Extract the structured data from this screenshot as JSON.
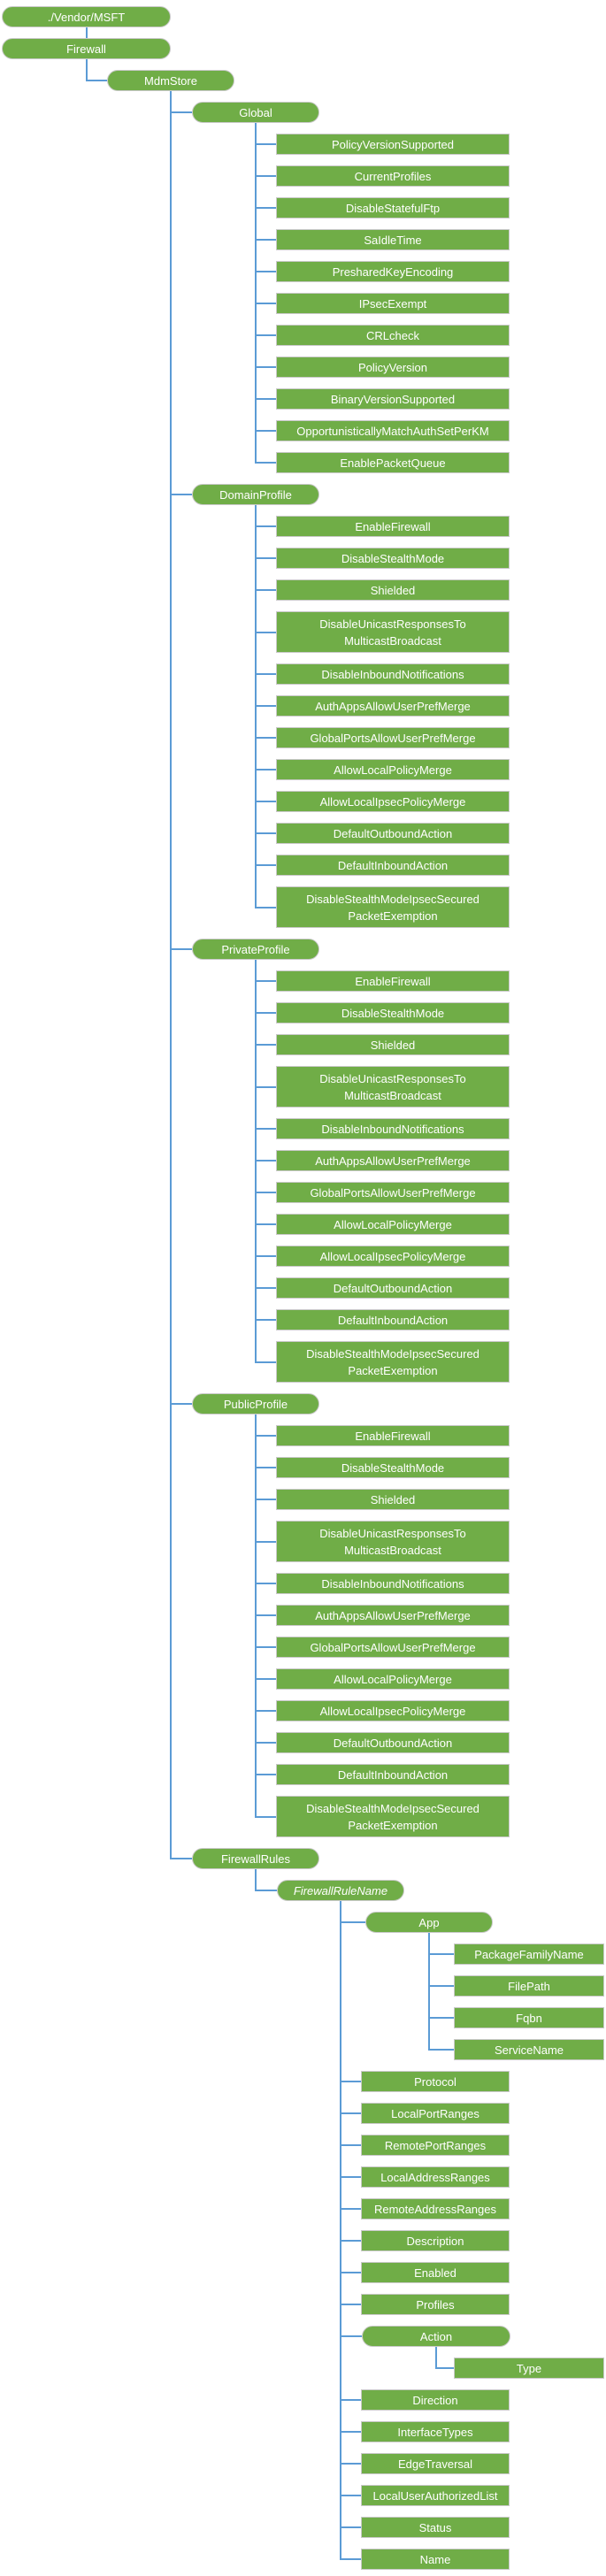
{
  "colors": {
    "node_fill": "#70AD47",
    "node_border": "#c9c9c9",
    "connector": "#5B9BD5",
    "text": "#ffffff"
  },
  "tree": {
    "label": "./Vendor/MSFT",
    "kind": "pill",
    "children": [
      {
        "label": "Firewall",
        "kind": "pill",
        "children": [
          {
            "label": "MdmStore",
            "kind": "pill",
            "children": [
              {
                "label": "Global",
                "kind": "pill",
                "children": [
                  {
                    "label": "PolicyVersionSupported",
                    "kind": "leaf"
                  },
                  {
                    "label": "CurrentProfiles",
                    "kind": "leaf"
                  },
                  {
                    "label": "DisableStatefulFtp",
                    "kind": "leaf"
                  },
                  {
                    "label": "SaIdleTime",
                    "kind": "leaf"
                  },
                  {
                    "label": "PresharedKeyEncoding",
                    "kind": "leaf"
                  },
                  {
                    "label": "IPsecExempt",
                    "kind": "leaf"
                  },
                  {
                    "label": "CRLcheck",
                    "kind": "leaf"
                  },
                  {
                    "label": "PolicyVersion",
                    "kind": "leaf"
                  },
                  {
                    "label": "BinaryVersionSupported",
                    "kind": "leaf"
                  },
                  {
                    "label": "OpportunisticallyMatchAuthSetPerKM",
                    "kind": "leaf"
                  },
                  {
                    "label": "EnablePacketQueue",
                    "kind": "leaf"
                  }
                ]
              },
              {
                "label": "DomainProfile",
                "kind": "pill",
                "children": [
                  {
                    "label": "EnableFirewall",
                    "kind": "leaf"
                  },
                  {
                    "label": "DisableStealthMode",
                    "kind": "leaf"
                  },
                  {
                    "label": "Shielded",
                    "kind": "leaf"
                  },
                  {
                    "label": "DisableUnicastResponsesTo\nMulticastBroadcast",
                    "kind": "leaf"
                  },
                  {
                    "label": "DisableInboundNotifications",
                    "kind": "leaf"
                  },
                  {
                    "label": "AuthAppsAllowUserPrefMerge",
                    "kind": "leaf"
                  },
                  {
                    "label": "GlobalPortsAllowUserPrefMerge",
                    "kind": "leaf"
                  },
                  {
                    "label": "AllowLocalPolicyMerge",
                    "kind": "leaf"
                  },
                  {
                    "label": "AllowLocalIpsecPolicyMerge",
                    "kind": "leaf"
                  },
                  {
                    "label": "DefaultOutboundAction",
                    "kind": "leaf"
                  },
                  {
                    "label": "DefaultInboundAction",
                    "kind": "leaf"
                  },
                  {
                    "label": "DisableStealthModeIpsecSecured\nPacketExemption",
                    "kind": "leaf"
                  }
                ]
              },
              {
                "label": "PrivateProfile",
                "kind": "pill",
                "children": [
                  {
                    "label": "EnableFirewall",
                    "kind": "leaf"
                  },
                  {
                    "label": "DisableStealthMode",
                    "kind": "leaf"
                  },
                  {
                    "label": "Shielded",
                    "kind": "leaf"
                  },
                  {
                    "label": "DisableUnicastResponsesTo\nMulticastBroadcast",
                    "kind": "leaf"
                  },
                  {
                    "label": "DisableInboundNotifications",
                    "kind": "leaf"
                  },
                  {
                    "label": "AuthAppsAllowUserPrefMerge",
                    "kind": "leaf"
                  },
                  {
                    "label": "GlobalPortsAllowUserPrefMerge",
                    "kind": "leaf"
                  },
                  {
                    "label": "AllowLocalPolicyMerge",
                    "kind": "leaf"
                  },
                  {
                    "label": "AllowLocalIpsecPolicyMerge",
                    "kind": "leaf"
                  },
                  {
                    "label": "DefaultOutboundAction",
                    "kind": "leaf"
                  },
                  {
                    "label": "DefaultInboundAction",
                    "kind": "leaf"
                  },
                  {
                    "label": "DisableStealthModeIpsecSecured\nPacketExemption",
                    "kind": "leaf"
                  }
                ]
              },
              {
                "label": "PublicProfile",
                "kind": "pill",
                "children": [
                  {
                    "label": "EnableFirewall",
                    "kind": "leaf"
                  },
                  {
                    "label": "DisableStealthMode",
                    "kind": "leaf"
                  },
                  {
                    "label": "Shielded",
                    "kind": "leaf"
                  },
                  {
                    "label": "DisableUnicastResponsesTo\nMulticastBroadcast",
                    "kind": "leaf"
                  },
                  {
                    "label": "DisableInboundNotifications",
                    "kind": "leaf"
                  },
                  {
                    "label": "AuthAppsAllowUserPrefMerge",
                    "kind": "leaf"
                  },
                  {
                    "label": "GlobalPortsAllowUserPrefMerge",
                    "kind": "leaf"
                  },
                  {
                    "label": "AllowLocalPolicyMerge",
                    "kind": "leaf"
                  },
                  {
                    "label": "AllowLocalIpsecPolicyMerge",
                    "kind": "leaf"
                  },
                  {
                    "label": "DefaultOutboundAction",
                    "kind": "leaf"
                  },
                  {
                    "label": "DefaultInboundAction",
                    "kind": "leaf"
                  },
                  {
                    "label": "DisableStealthModeIpsecSecured\nPacketExemption",
                    "kind": "leaf"
                  }
                ]
              },
              {
                "label": "FirewallRules",
                "kind": "pill",
                "children": [
                  {
                    "label": "FirewallRuleName",
                    "kind": "pill",
                    "italic": true,
                    "children": [
                      {
                        "label": "App",
                        "kind": "pill",
                        "children": [
                          {
                            "label": "PackageFamilyName",
                            "kind": "leaf"
                          },
                          {
                            "label": "FilePath",
                            "kind": "leaf"
                          },
                          {
                            "label": "Fqbn",
                            "kind": "leaf"
                          },
                          {
                            "label": "ServiceName",
                            "kind": "leaf"
                          }
                        ]
                      },
                      {
                        "label": "Protocol",
                        "kind": "leaf"
                      },
                      {
                        "label": "LocalPortRanges",
                        "kind": "leaf"
                      },
                      {
                        "label": "RemotePortRanges",
                        "kind": "leaf"
                      },
                      {
                        "label": "LocalAddressRanges",
                        "kind": "leaf"
                      },
                      {
                        "label": "RemoteAddressRanges",
                        "kind": "leaf"
                      },
                      {
                        "label": "Description",
                        "kind": "leaf"
                      },
                      {
                        "label": "Enabled",
                        "kind": "leaf"
                      },
                      {
                        "label": "Profiles",
                        "kind": "leaf"
                      },
                      {
                        "label": "Action",
                        "kind": "pill",
                        "children": [
                          {
                            "label": "Type",
                            "kind": "leaf"
                          }
                        ]
                      },
                      {
                        "label": "Direction",
                        "kind": "leaf"
                      },
                      {
                        "label": "InterfaceTypes",
                        "kind": "leaf"
                      },
                      {
                        "label": "EdgeTraversal",
                        "kind": "leaf"
                      },
                      {
                        "label": "LocalUserAuthorizedList",
                        "kind": "leaf"
                      },
                      {
                        "label": "Status",
                        "kind": "leaf"
                      },
                      {
                        "label": "Name",
                        "kind": "leaf"
                      }
                    ]
                  }
                ]
              }
            ]
          }
        ]
      }
    ]
  }
}
